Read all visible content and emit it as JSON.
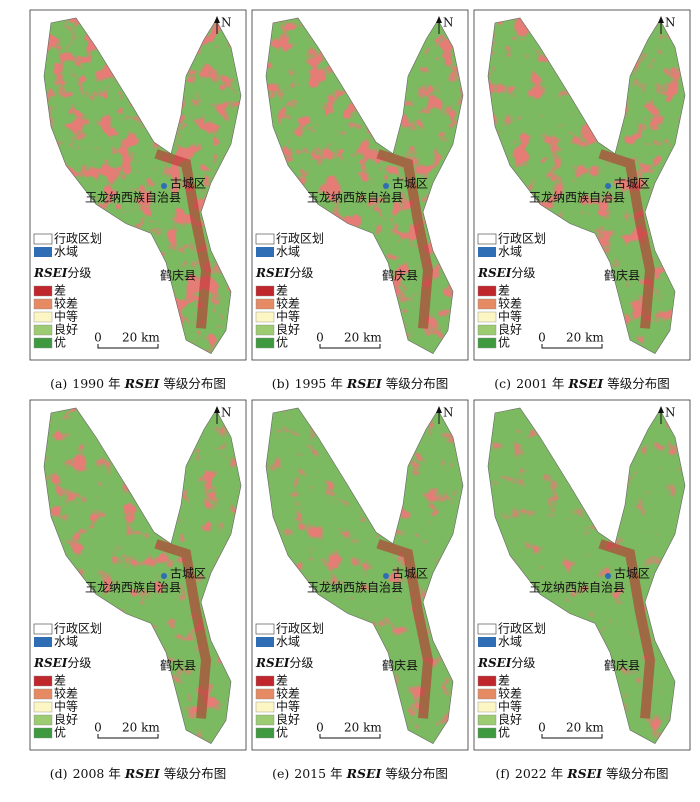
{
  "north": "N",
  "scale": {
    "start": "0",
    "end": "20 km"
  },
  "places": {
    "gucheng": "古城区",
    "yulong": "玉龙纳西族自治县",
    "heqing": "鹤庆县"
  },
  "legend": {
    "boundary": "行政区划",
    "water": "水域",
    "grade_index": "RSEI",
    "grade_suffix": "分级",
    "classes": [
      {
        "label": "差",
        "color": "#c0272d"
      },
      {
        "label": "较差",
        "color": "#e58a63"
      },
      {
        "label": "中等",
        "color": "#fbf6c4"
      },
      {
        "label": "良好",
        "color": "#9ccb72"
      },
      {
        "label": "优",
        "color": "#3f9a3f"
      }
    ]
  },
  "panels": [
    {
      "label": "(a)",
      "year": "1990",
      "unit": "年",
      "index": "RSEI",
      "suffix": "等级分布图"
    },
    {
      "label": "(b)",
      "year": "1995",
      "unit": "年",
      "index": "RSEI",
      "suffix": "等级分布图"
    },
    {
      "label": "(c)",
      "year": "2001",
      "unit": "年",
      "index": "RSEI",
      "suffix": "等级分布图"
    },
    {
      "label": "(d)",
      "year": "2008",
      "unit": "年",
      "index": "RSEI",
      "suffix": "等级分布图"
    },
    {
      "label": "(e)",
      "year": "2015",
      "unit": "年",
      "index": "RSEI",
      "suffix": "等级分布图"
    },
    {
      "label": "(f)",
      "year": "2022",
      "unit": "年",
      "index": "RSEI",
      "suffix": "等级分布图"
    }
  ]
}
